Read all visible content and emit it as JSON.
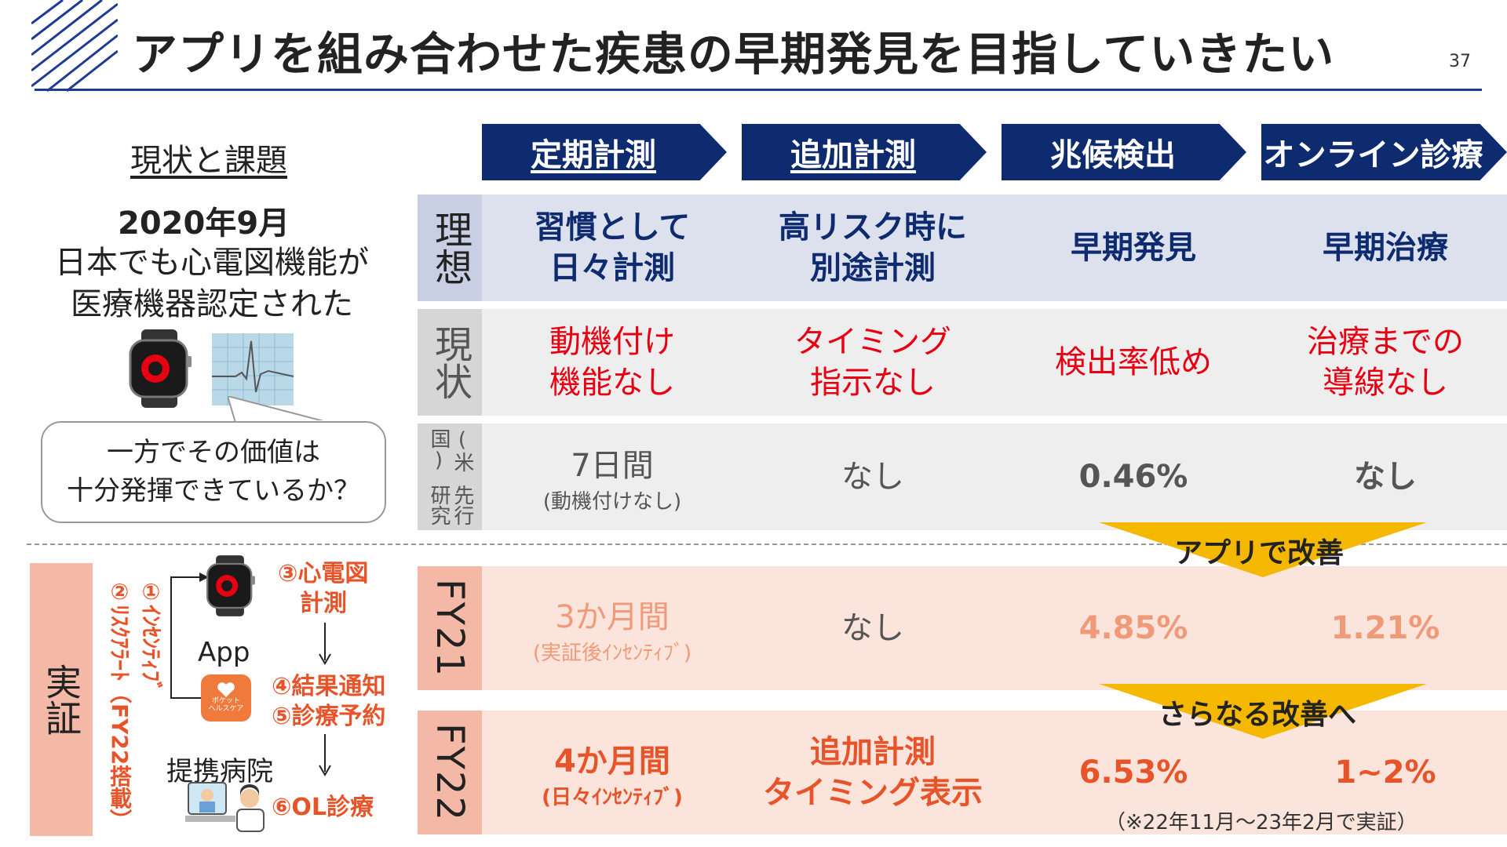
{
  "header": {
    "title": "アプリを組み合わせた疾患の早期発見を目指していきたい",
    "page_number": "37"
  },
  "steps": [
    "定期計測",
    "追加計測",
    "兆候検出",
    "オンライン診療"
  ],
  "left": {
    "heading": "現状と課題",
    "date": "2020年9月",
    "line1": "日本でも心電図機能が",
    "line2": "医療機器認定された",
    "bubble_line1": "一方でその価値は",
    "bubble_line2": "十分発揮できているか？"
  },
  "table": {
    "ideal": {
      "label": "理想",
      "cells": [
        [
          "習慣として",
          "日々計測"
        ],
        [
          "高リスク時に",
          "別途計測"
        ],
        [
          "早期発見"
        ],
        [
          "早期治療"
        ]
      ]
    },
    "current": {
      "label": "現状",
      "cells": [
        [
          "動機付け",
          "機能なし"
        ],
        [
          "タイミング",
          "指示なし"
        ],
        [
          "検出率低め"
        ],
        [
          "治療までの",
          "導線なし"
        ]
      ]
    },
    "prior": {
      "label_line1": "先行研究",
      "label_line2": "(米国)",
      "c1_main": "7日間",
      "c1_sub": "(動機付けなし)",
      "c2": "なし",
      "c3": "0.46%",
      "c4": "なし"
    },
    "fy21": {
      "label": "FY21",
      "c1_main": "3か月間",
      "c1_sub": "(実証後ｲﾝｾﾝﾃｨﾌﾞ)",
      "c2": "なし",
      "c3": "4.85%",
      "c4": "1.21%"
    },
    "fy22": {
      "label": "FY22",
      "c1_main": "4か月間",
      "c1_sub": "(日々ｲﾝｾﾝﾃｨﾌﾞ)",
      "c2_line1": "追加計測",
      "c2_line2": "タイミング表示",
      "c3": "6.53%",
      "c4": "1~2%"
    },
    "improve1": "アプリで改善",
    "improve2": "さらなる改善へ",
    "note": "（※22年11月～23年2月で実証）"
  },
  "verify": {
    "label": "実証",
    "vertical1": "①ｲﾝｾﾝﾃｨﾌﾞ",
    "vertical2": "②ﾘｽｸｱﾗｰﾄ（FY22搭載）",
    "step3_line1": "③心電図",
    "step3_line2": "計測",
    "step4": "④結果通知",
    "step5": "⑤診療予約",
    "app": "App",
    "app_icon_text": "ポケット\nヘルスケア",
    "hospital": "提携病院",
    "step6": "⑥OL診療"
  },
  "colors": {
    "navy": "#0d2b6e",
    "accent_red": "#e60012",
    "orange": "#e8542a",
    "gold": "#f5b800",
    "salmon": "#f3b8a6"
  }
}
